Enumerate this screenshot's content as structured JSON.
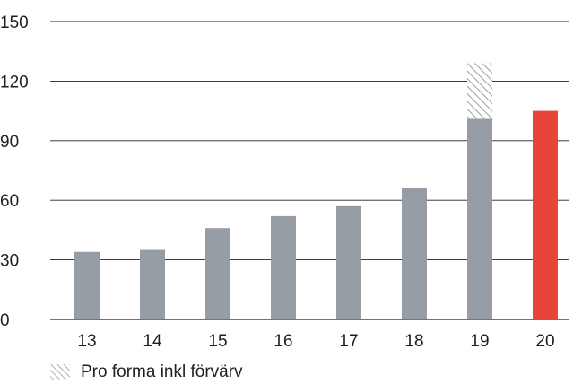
{
  "chart_data": {
    "type": "bar",
    "categories": [
      "13",
      "14",
      "15",
      "16",
      "17",
      "18",
      "19",
      "20"
    ],
    "series": [
      {
        "values": [
          34,
          35,
          46,
          52,
          57,
          66,
          101,
          105
        ]
      },
      {
        "name": "Pro forma inkl förvärv",
        "values": [
          0,
          0,
          0,
          0,
          0,
          0,
          28,
          0
        ]
      }
    ],
    "ylim": [
      0,
      150
    ],
    "yticks": [
      0,
      30,
      60,
      90,
      120,
      150
    ],
    "grid": true,
    "legend": "bottom-left",
    "colors": {
      "base": "#979da4",
      "highlight": "#e8443a",
      "hatch": "#979da4",
      "grid": "#222222"
    },
    "highlight_category": "20"
  }
}
